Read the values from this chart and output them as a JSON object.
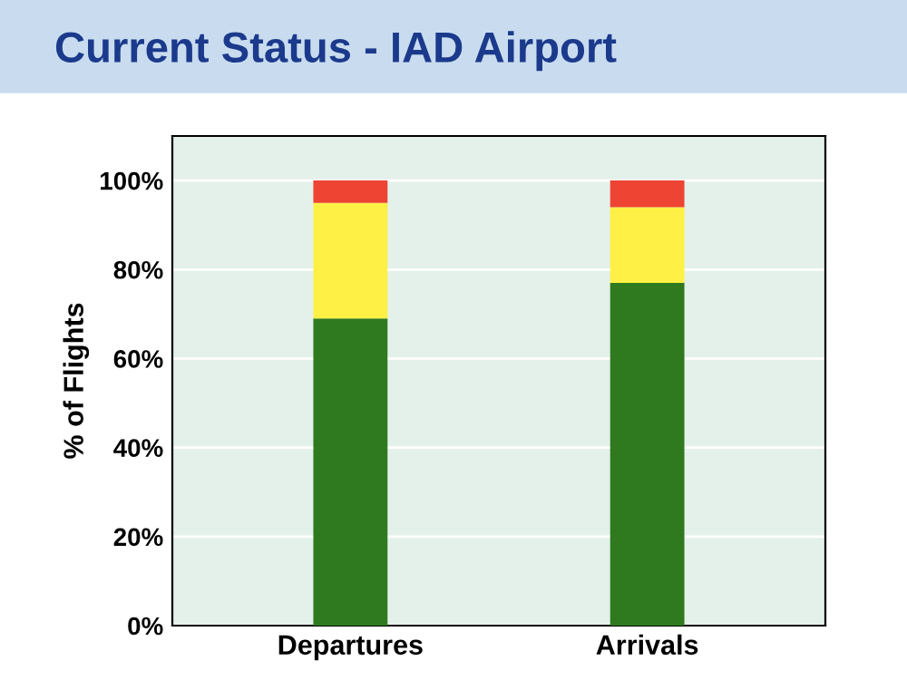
{
  "chart_data": {
    "type": "bar",
    "title": "Current Status - IAD Airport",
    "ylabel": "% of Flights",
    "categories": [
      "Departures",
      "Arrivals"
    ],
    "stacked": true,
    "series": [
      {
        "color": "#2f7a1f",
        "values": [
          69,
          77
        ]
      },
      {
        "color": "#fff045",
        "values": [
          26,
          17
        ]
      },
      {
        "color": "#ee4433",
        "values": [
          5,
          6
        ]
      }
    ],
    "ylim": [
      0,
      110
    ],
    "yticks": [
      {
        "value": 0,
        "label": "0%"
      },
      {
        "value": 20,
        "label": "20%"
      },
      {
        "value": 40,
        "label": "40%"
      },
      {
        "value": 60,
        "label": "60%"
      },
      {
        "value": 80,
        "label": "80%"
      },
      {
        "value": 100,
        "label": "100%"
      }
    ],
    "grid": "y"
  }
}
